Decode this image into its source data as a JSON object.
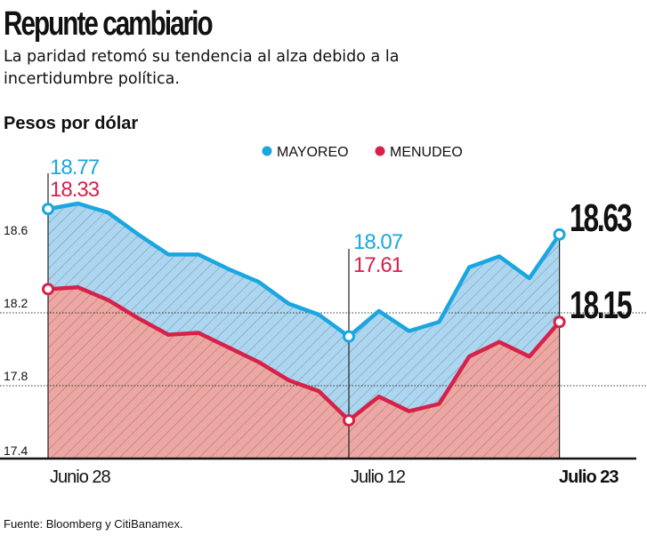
{
  "title": "Repunte cambiario",
  "subtitle": "La paridad retomó su tendencia al alza debido a la incertidumbre política.",
  "source": "Fuente: Bloomberg y CitiBanamex.",
  "chart_data": {
    "type": "area",
    "ylabel": "Pesos por dólar",
    "ylim": [
      17.4,
      18.85
    ],
    "yticks": [
      17.4,
      17.8,
      18.2,
      18.6
    ],
    "x_tick_labels": [
      {
        "index": 0,
        "label": "Junio 28"
      },
      {
        "index": 10,
        "label": "Julio 12"
      },
      {
        "index": 17,
        "label": "Julio 23"
      }
    ],
    "legend_placement": "top-center",
    "series": [
      {
        "name": "MAYOREO",
        "color": "#1aa6e0",
        "fill": "#acd6f0",
        "values": [
          18.77,
          18.8,
          18.75,
          18.63,
          18.52,
          18.52,
          18.44,
          18.37,
          18.25,
          18.19,
          18.07,
          18.21,
          18.1,
          18.15,
          18.45,
          18.51,
          18.39,
          18.63
        ]
      },
      {
        "name": "MENUDEO",
        "color": "#d6224a",
        "fill": "#eca7a2",
        "values": [
          18.33,
          18.34,
          18.27,
          18.17,
          18.08,
          18.09,
          18.01,
          17.93,
          17.83,
          17.77,
          17.61,
          17.74,
          17.66,
          17.7,
          17.96,
          18.04,
          17.96,
          18.15
        ]
      }
    ],
    "annotations": [
      {
        "index": 0,
        "mayoreo": "18.77",
        "menudeo": "18.33"
      },
      {
        "index": 10,
        "mayoreo": "18.07",
        "menudeo": "17.61"
      },
      {
        "index": 17,
        "mayoreo": "18.63",
        "menudeo": "18.15"
      }
    ],
    "gridlines": [
      17.8,
      18.2
    ]
  }
}
